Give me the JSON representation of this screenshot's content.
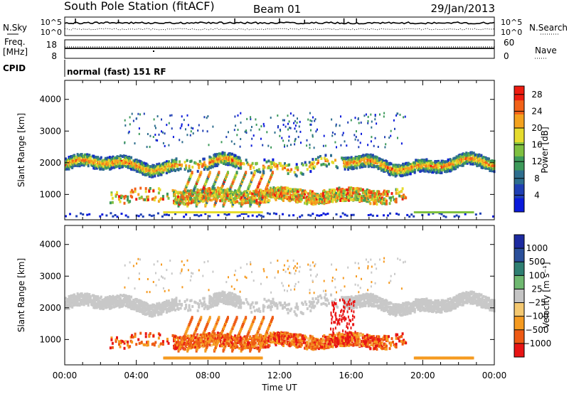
{
  "header": {
    "station": "South Pole Station (fitACF)",
    "beam": "Beam 01",
    "date": "29/Jan/2013"
  },
  "strip": {
    "nsky_label": "N.Sky",
    "nsky_ticks": [
      "10^5",
      "10^0"
    ],
    "nsearch_label": "N.Search",
    "nsearch_ticks": [
      "10^5",
      "10^0"
    ],
    "freq_label_line1": "Freq.",
    "freq_label_line2": "[MHz]",
    "freq_ticks": [
      "18",
      "8"
    ],
    "nave_label": "Nave",
    "nave_ticks": [
      "60",
      "0"
    ],
    "cpid_label": "CPID",
    "cpid_text": "normal (fast) 151 RF"
  },
  "colors": {
    "power_scale": [
      "#0a1adc",
      "#1f3fb4",
      "#2e6e8e",
      "#3d9a5a",
      "#7fc040",
      "#e6dc2e",
      "#f4a21e",
      "#f26218",
      "#ee1c10"
    ],
    "velocity_scale": [
      "#e81414",
      "#ee5a14",
      "#f59a20",
      "#f4c870",
      "#c4c4c4",
      "#6fb870",
      "#2f7f72",
      "#2a4f9a",
      "#1c2aa0"
    ],
    "gray": "#c8c8c8"
  },
  "chart_data": [
    {
      "type": "heatmap",
      "name": "power-panel",
      "ylabel": "Slant Range [km]",
      "yticks": [
        1000,
        2000,
        3000,
        4000
      ],
      "ylim": [
        200,
        4600
      ],
      "xlim_hours": [
        0,
        24
      ],
      "colorbar": {
        "label": "Power [dB]",
        "ticks": [
          4,
          8,
          12,
          16,
          20,
          24,
          28
        ],
        "range": [
          0,
          30
        ]
      }
    },
    {
      "type": "heatmap",
      "name": "velocity-panel",
      "xlabel": "Time UT",
      "xticks": [
        "00:00",
        "04:00",
        "08:00",
        "12:00",
        "16:00",
        "20:00",
        "00:00"
      ],
      "xtick_hours": [
        0,
        4,
        8,
        12,
        16,
        20,
        24
      ],
      "ylabel": "Slant Range [km]",
      "yticks": [
        1000,
        2000,
        3000,
        4000
      ],
      "ylim": [
        200,
        4600
      ],
      "xlim_hours": [
        0,
        24
      ],
      "colorbar": {
        "label": "Velocity [m s⁻¹]",
        "ticks": [
          "1000",
          "500",
          "100",
          "25",
          "−25",
          "−100",
          "−500",
          "−1000"
        ]
      }
    }
  ]
}
